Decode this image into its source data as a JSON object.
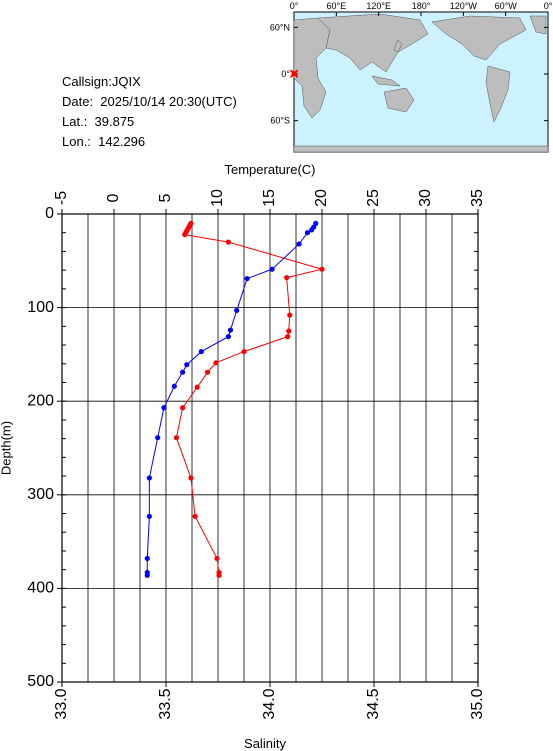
{
  "info": {
    "callsign": "Callsign:JQIX",
    "date": "Date:  2025/10/14 20:30(UTC)",
    "lat": "Lat.:  39.875",
    "lon": "Lon.:  142.296"
  },
  "map": {
    "top_labels": [
      "0°",
      "60°E",
      "120°E",
      "180°",
      "120°W",
      "60°W",
      "0°"
    ],
    "left_labels": [
      "60°N",
      "0°",
      "60°S"
    ],
    "ocean_color": "#ccf2ff",
    "land_color": "#bdbdbd",
    "station_color": "#ff0000"
  },
  "chart_data": {
    "type": "line",
    "title": "",
    "top_axis_label": "Temperature(C)",
    "bottom_axis_label": "Salinity",
    "y_axis_label": "Depth(m)",
    "temperature_range": [
      -5,
      35
    ],
    "temperature_ticks": [
      "-5",
      "0",
      "5",
      "10",
      "15",
      "20",
      "25",
      "30",
      "35"
    ],
    "salinity_range": [
      33.0,
      35.0
    ],
    "salinity_ticks": [
      "33.0",
      "33.5",
      "34.0",
      "34.5",
      "35.0"
    ],
    "depth_range": [
      0,
      500
    ],
    "depth_ticks": [
      "0",
      "100",
      "200",
      "300",
      "400",
      "500"
    ],
    "depth_reversed": true,
    "grid": true,
    "series": [
      {
        "quantity": "temperature",
        "color": "#ff0000",
        "points": [
          {
            "depth": 10,
            "value": 7.4
          },
          {
            "depth": 12,
            "value": 7.3
          },
          {
            "depth": 14,
            "value": 7.2
          },
          {
            "depth": 16,
            "value": 7.1
          },
          {
            "depth": 18,
            "value": 7.0
          },
          {
            "depth": 20,
            "value": 6.9
          },
          {
            "depth": 22,
            "value": 6.8
          },
          {
            "depth": 30,
            "value": 11.0
          },
          {
            "depth": 59,
            "value": 20.0
          },
          {
            "depth": 68,
            "value": 16.6
          },
          {
            "depth": 108,
            "value": 16.9
          },
          {
            "depth": 125,
            "value": 16.8
          },
          {
            "depth": 131,
            "value": 16.7
          },
          {
            "depth": 147,
            "value": 12.5
          },
          {
            "depth": 159,
            "value": 9.8
          },
          {
            "depth": 169,
            "value": 9.0
          },
          {
            "depth": 185,
            "value": 8.0
          },
          {
            "depth": 207,
            "value": 6.6
          },
          {
            "depth": 239,
            "value": 6.0
          },
          {
            "depth": 282,
            "value": 7.4
          },
          {
            "depth": 323,
            "value": 7.8
          },
          {
            "depth": 368,
            "value": 9.9
          },
          {
            "depth": 383,
            "value": 10.1
          },
          {
            "depth": 386,
            "value": 10.1
          }
        ]
      },
      {
        "quantity": "salinity",
        "color": "#0000ff",
        "points": [
          {
            "depth": 10,
            "value": 34.22
          },
          {
            "depth": 14,
            "value": 34.21
          },
          {
            "depth": 17,
            "value": 34.2
          },
          {
            "depth": 20,
            "value": 34.18
          },
          {
            "depth": 32,
            "value": 34.14
          },
          {
            "depth": 59,
            "value": 34.01
          },
          {
            "depth": 69,
            "value": 33.89
          },
          {
            "depth": 103,
            "value": 33.84
          },
          {
            "depth": 124,
            "value": 33.81
          },
          {
            "depth": 131,
            "value": 33.8
          },
          {
            "depth": 147,
            "value": 33.67
          },
          {
            "depth": 161,
            "value": 33.6
          },
          {
            "depth": 169,
            "value": 33.58
          },
          {
            "depth": 184,
            "value": 33.54
          },
          {
            "depth": 207,
            "value": 33.49
          },
          {
            "depth": 239,
            "value": 33.46
          },
          {
            "depth": 282,
            "value": 33.42
          },
          {
            "depth": 323,
            "value": 33.42
          },
          {
            "depth": 368,
            "value": 33.41
          },
          {
            "depth": 383,
            "value": 33.41
          },
          {
            "depth": 386,
            "value": 33.41
          }
        ]
      }
    ]
  }
}
